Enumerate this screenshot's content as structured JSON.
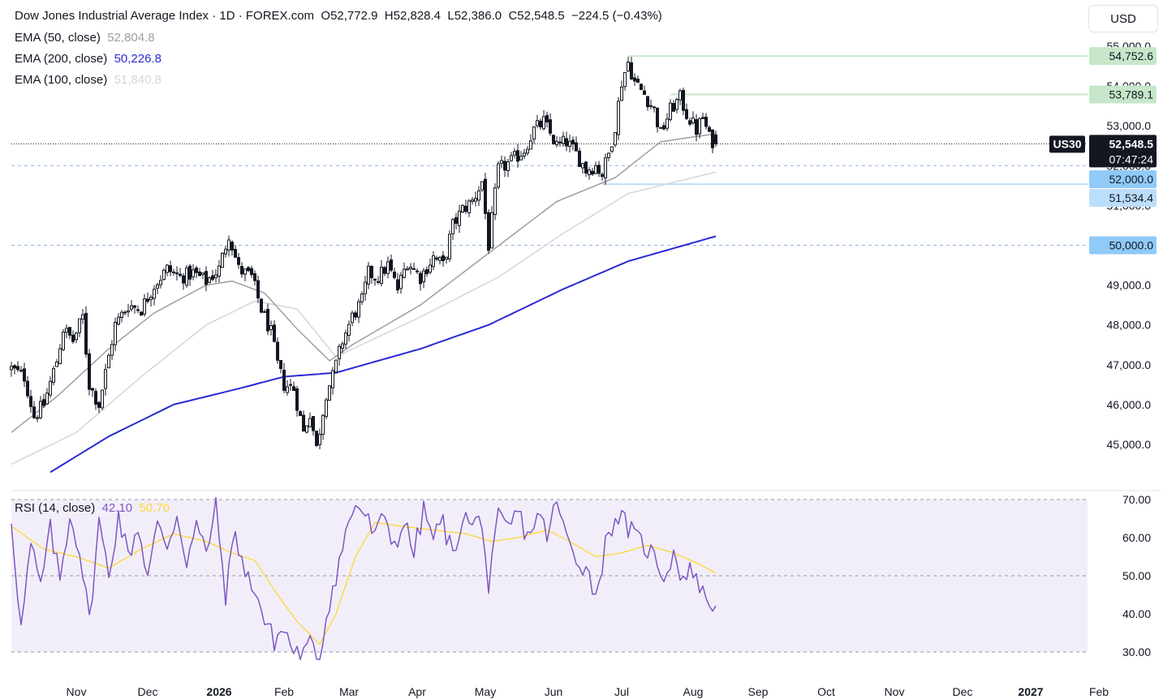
{
  "header": {
    "symbol_title": "Dow Jones Industrial Average Index · 1D · FOREX.com",
    "ohlc": {
      "open_label": "O",
      "open": "52,772.9",
      "high_label": "H",
      "high": "52,828.4",
      "low_label": "L",
      "low": "52,386.0",
      "close_label": "C",
      "close": "52,548.5",
      "change": "−224.5 (−0.43%)"
    },
    "currency": "USD"
  },
  "indicators": {
    "ema50": {
      "label": "EMA (50, close)",
      "value": "52,804.8",
      "color": "#9e9e9e"
    },
    "ema200": {
      "label": "EMA (200, close)",
      "value": "50,226.8",
      "color": "#2a2ad4"
    },
    "ema100": {
      "label": "EMA (100, close)",
      "value": "51,840.8",
      "color": "#d6d6d6"
    },
    "rsi": {
      "label": "RSI (14, close)",
      "value": "42.10",
      "ma_value": "50.70",
      "color": "#7e57c2",
      "ma_color": "#fdd835"
    }
  },
  "price_axis": {
    "ticks": [
      "55,000.0",
      "54,000.0",
      "53,000.0",
      "52,000.0",
      "51,000.0",
      "50,000.0",
      "49,000.0",
      "48,000.0",
      "47,000.0",
      "46,000.0",
      "45,000.0"
    ],
    "symbol_tag": "US30",
    "last_price": "52,548.5",
    "countdown": "07:47:24",
    "levels": [
      {
        "price": 54752.6,
        "label": "54,752.6",
        "kind": "resistance"
      },
      {
        "price": 53789.1,
        "label": "53,789.1",
        "kind": "resistance"
      },
      {
        "price": 52000.0,
        "label": "52,000.0",
        "kind": "support-dashed"
      },
      {
        "price": 51534.4,
        "label": "51,534.4",
        "kind": "support"
      },
      {
        "price": 50000.0,
        "label": "50,000.0",
        "kind": "support-dashed"
      }
    ]
  },
  "rsi_axis": {
    "ticks": [
      "70.00",
      "60.00",
      "50.00",
      "40.00",
      "30.00"
    ]
  },
  "time_axis": {
    "labels": [
      "Nov",
      "Dec",
      "2026",
      "Feb",
      "Mar",
      "Apr",
      "May",
      "Jun",
      "Jul",
      "Aug",
      "Sep",
      "Oct",
      "Nov",
      "Dec",
      "2027",
      "Feb"
    ]
  },
  "chart_data": {
    "type": "candlestick",
    "y_range": [
      44500,
      55200
    ],
    "rsi_range": [
      28,
      72
    ],
    "months": [
      "Nov",
      "Dec",
      "2026",
      "Feb",
      "Mar",
      "Apr",
      "May",
      "Jun",
      "Jul",
      "Aug",
      "Sep",
      "Oct",
      "Nov",
      "Dec",
      "2027",
      "Feb"
    ],
    "month_days": [
      0,
      22,
      44,
      64,
      84,
      105,
      126,
      147,
      168,
      190,
      210,
      231,
      252,
      273,
      294,
      315
    ],
    "close_anchors": [
      [
        0,
        46900
      ],
      [
        4,
        46700
      ],
      [
        7,
        45700
      ],
      [
        10,
        46000
      ],
      [
        14,
        47100
      ],
      [
        16,
        47900
      ],
      [
        19,
        47600
      ],
      [
        22,
        48200
      ],
      [
        24,
        46500
      ],
      [
        27,
        46000
      ],
      [
        30,
        47200
      ],
      [
        32,
        48000
      ],
      [
        36,
        48500
      ],
      [
        40,
        48400
      ],
      [
        44,
        49000
      ],
      [
        48,
        49400
      ],
      [
        52,
        49200
      ],
      [
        56,
        49300
      ],
      [
        60,
        49100
      ],
      [
        64,
        49400
      ],
      [
        67,
        50300
      ],
      [
        70,
        49400
      ],
      [
        74,
        49200
      ],
      [
        77,
        48400
      ],
      [
        80,
        47800
      ],
      [
        82,
        47000
      ],
      [
        84,
        46500
      ],
      [
        87,
        46400
      ],
      [
        90,
        45300
      ],
      [
        92,
        45800
      ],
      [
        94,
        44900
      ],
      [
        97,
        46300
      ],
      [
        99,
        46700
      ],
      [
        102,
        47600
      ],
      [
        105,
        48200
      ],
      [
        108,
        48600
      ],
      [
        110,
        49300
      ],
      [
        113,
        49200
      ],
      [
        116,
        49500
      ],
      [
        119,
        48900
      ],
      [
        122,
        49600
      ],
      [
        126,
        49200
      ],
      [
        130,
        49700
      ],
      [
        133,
        49500
      ],
      [
        136,
        50500
      ],
      [
        139,
        50900
      ],
      [
        142,
        51100
      ],
      [
        145,
        51600
      ],
      [
        147,
        50000
      ],
      [
        150,
        51900
      ],
      [
        154,
        52100
      ],
      [
        158,
        52400
      ],
      [
        161,
        52900
      ],
      [
        164,
        53100
      ],
      [
        168,
        52500
      ],
      [
        171,
        52600
      ],
      [
        174,
        52300
      ],
      [
        177,
        51900
      ],
      [
        180,
        52000
      ],
      [
        182,
        51800
      ],
      [
        184,
        52300
      ],
      [
        186,
        53000
      ],
      [
        188,
        54100
      ],
      [
        190,
        54600
      ],
      [
        192,
        54100
      ],
      [
        195,
        53800
      ],
      [
        198,
        53400
      ],
      [
        200,
        52800
      ],
      [
        203,
        53400
      ],
      [
        206,
        53700
      ],
      [
        208,
        53300
      ],
      [
        211,
        52900
      ],
      [
        213,
        53200
      ],
      [
        215,
        52700
      ],
      [
        217,
        52548.5
      ]
    ],
    "ema_anchors": {
      "ema50": [
        [
          0,
          45300
        ],
        [
          14,
          46200
        ],
        [
          30,
          47400
        ],
        [
          44,
          48300
        ],
        [
          60,
          49000
        ],
        [
          68,
          49100
        ],
        [
          78,
          48800
        ],
        [
          88,
          47900
        ],
        [
          98,
          47100
        ],
        [
          105,
          47500
        ],
        [
          126,
          48500
        ],
        [
          147,
          49800
        ],
        [
          168,
          51100
        ],
        [
          186,
          51700
        ],
        [
          200,
          52600
        ],
        [
          217,
          52804.8
        ]
      ],
      "ema100": [
        [
          0,
          44500
        ],
        [
          20,
          45300
        ],
        [
          40,
          46700
        ],
        [
          60,
          48000
        ],
        [
          75,
          48600
        ],
        [
          88,
          48400
        ],
        [
          100,
          47200
        ],
        [
          126,
          48200
        ],
        [
          150,
          49200
        ],
        [
          170,
          50300
        ],
        [
          190,
          51300
        ],
        [
          217,
          51840.8
        ]
      ],
      "ema200": [
        [
          10,
          44200
        ],
        [
          30,
          45200
        ],
        [
          50,
          46000
        ],
        [
          70,
          46400
        ],
        [
          84,
          46700
        ],
        [
          100,
          46800
        ],
        [
          126,
          47400
        ],
        [
          147,
          48000
        ],
        [
          170,
          48900
        ],
        [
          190,
          49600
        ],
        [
          217,
          50226.8
        ]
      ]
    },
    "rsi_anchors": [
      [
        0,
        65
      ],
      [
        3,
        36
      ],
      [
        6,
        58
      ],
      [
        9,
        47
      ],
      [
        12,
        62
      ],
      [
        15,
        49
      ],
      [
        18,
        66
      ],
      [
        21,
        57
      ],
      [
        24,
        38
      ],
      [
        27,
        64
      ],
      [
        30,
        50
      ],
      [
        33,
        66
      ],
      [
        36,
        55
      ],
      [
        39,
        63
      ],
      [
        42,
        50
      ],
      [
        45,
        63
      ],
      [
        48,
        58
      ],
      [
        51,
        66
      ],
      [
        54,
        54
      ],
      [
        57,
        63
      ],
      [
        60,
        56
      ],
      [
        63,
        68
      ],
      [
        66,
        45
      ],
      [
        69,
        62
      ],
      [
        72,
        50
      ],
      [
        75,
        47
      ],
      [
        78,
        38
      ],
      [
        81,
        33
      ],
      [
        84,
        36
      ],
      [
        87,
        30
      ],
      [
        90,
        29
      ],
      [
        93,
        33
      ],
      [
        95,
        28
      ],
      [
        97,
        40
      ],
      [
        100,
        50
      ],
      [
        103,
        61
      ],
      [
        106,
        69
      ],
      [
        109,
        66
      ],
      [
        112,
        60
      ],
      [
        115,
        66
      ],
      [
        118,
        58
      ],
      [
        121,
        64
      ],
      [
        124,
        56
      ],
      [
        127,
        67
      ],
      [
        130,
        60
      ],
      [
        133,
        64
      ],
      [
        136,
        55
      ],
      [
        139,
        66
      ],
      [
        142,
        63
      ],
      [
        145,
        65
      ],
      [
        147,
        46
      ],
      [
        150,
        65
      ],
      [
        153,
        62
      ],
      [
        156,
        67
      ],
      [
        159,
        60
      ],
      [
        162,
        66
      ],
      [
        165,
        61
      ],
      [
        168,
        69
      ],
      [
        171,
        60
      ],
      [
        174,
        55
      ],
      [
        177,
        52
      ],
      [
        180,
        45
      ],
      [
        183,
        58
      ],
      [
        186,
        66
      ],
      [
        189,
        64
      ],
      [
        192,
        60
      ],
      [
        195,
        58
      ],
      [
        198,
        55
      ],
      [
        201,
        50
      ],
      [
        204,
        56
      ],
      [
        207,
        49
      ],
      [
        210,
        52
      ],
      [
        213,
        45
      ],
      [
        217,
        42.1
      ]
    ],
    "rsi_ma_anchors": [
      [
        0,
        63
      ],
      [
        10,
        57
      ],
      [
        20,
        55
      ],
      [
        30,
        52
      ],
      [
        40,
        57
      ],
      [
        50,
        61
      ],
      [
        60,
        59
      ],
      [
        68,
        56
      ],
      [
        75,
        54
      ],
      [
        82,
        45
      ],
      [
        88,
        38
      ],
      [
        95,
        32
      ],
      [
        100,
        40
      ],
      [
        106,
        55
      ],
      [
        112,
        64
      ],
      [
        120,
        63
      ],
      [
        130,
        62
      ],
      [
        140,
        61
      ],
      [
        148,
        59
      ],
      [
        156,
        60
      ],
      [
        165,
        62
      ],
      [
        172,
        59
      ],
      [
        180,
        55
      ],
      [
        188,
        56
      ],
      [
        196,
        58
      ],
      [
        204,
        56
      ],
      [
        212,
        53
      ],
      [
        217,
        50.7
      ]
    ]
  }
}
